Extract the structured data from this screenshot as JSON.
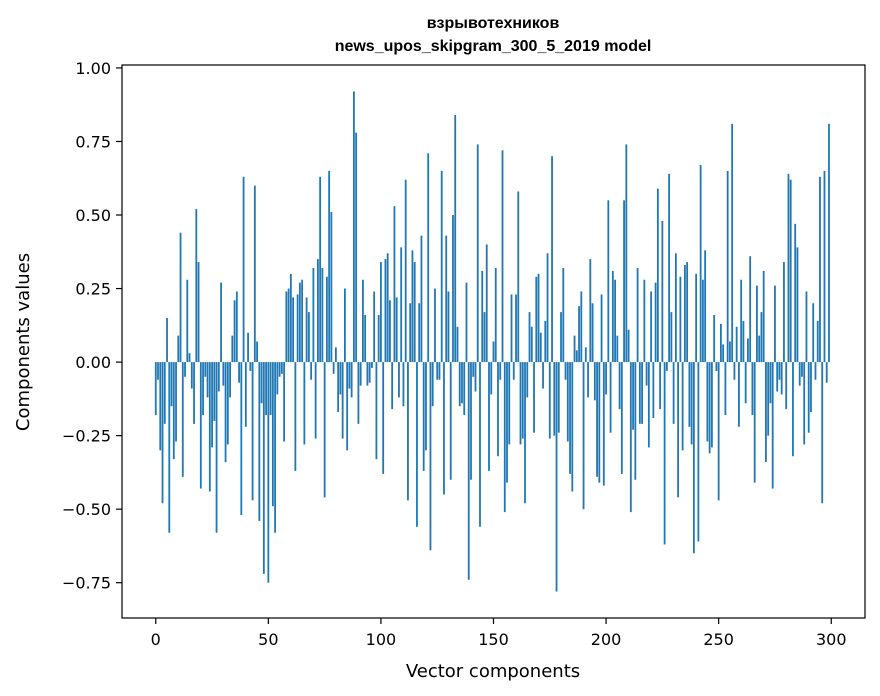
{
  "chart_data": {
    "type": "bar",
    "title_line1": "взрывотехников",
    "title_line2": "news_upos_skipgram_300_5_2019 model",
    "xlabel": "Vector components",
    "ylabel": "Components values",
    "xlim": [
      -15,
      315
    ],
    "ylim": [
      -0.87,
      1.01
    ],
    "xticks": [
      0,
      50,
      100,
      150,
      200,
      250,
      300
    ],
    "xtick_labels": [
      "0",
      "50",
      "100",
      "150",
      "200",
      "250",
      "300"
    ],
    "yticks": [
      -0.75,
      -0.5,
      -0.25,
      0.0,
      0.25,
      0.5,
      0.75,
      1.0
    ],
    "ytick_labels": [
      "−0.75",
      "−0.50",
      "−0.25",
      "0.00",
      "0.25",
      "0.50",
      "0.75",
      "1.00"
    ],
    "bar_color": "#1f77b4",
    "grid": false,
    "legend": "none",
    "values": [
      -0.18,
      -0.06,
      -0.3,
      -0.48,
      -0.21,
      0.15,
      -0.58,
      -0.15,
      -0.33,
      -0.27,
      0.09,
      0.44,
      -0.39,
      -0.05,
      0.28,
      0.03,
      -0.09,
      -0.21,
      0.52,
      0.34,
      -0.43,
      -0.18,
      -0.05,
      -0.12,
      -0.44,
      -0.29,
      -0.2,
      -0.58,
      -0.1,
      0.27,
      -0.08,
      -0.34,
      -0.28,
      -0.12,
      0.09,
      0.21,
      0.24,
      -0.07,
      -0.52,
      0.63,
      -0.22,
      0.1,
      -0.03,
      -0.47,
      0.6,
      0.07,
      -0.54,
      -0.14,
      -0.72,
      -0.18,
      -0.75,
      -0.18,
      -0.49,
      -0.58,
      -0.11,
      -0.05,
      -0.04,
      -0.27,
      0.24,
      0.25,
      0.3,
      0.22,
      -0.37,
      0.23,
      0.27,
      0.28,
      -0.28,
      0.22,
      0.17,
      -0.06,
      0.32,
      -0.26,
      0.35,
      0.63,
      0.32,
      -0.46,
      0.29,
      0.65,
      0.51,
      -0.04,
      0.05,
      -0.17,
      -0.11,
      -0.26,
      0.25,
      -0.3,
      -0.09,
      -0.12,
      0.92,
      0.78,
      -0.21,
      -0.08,
      0.28,
      0.16,
      -0.08,
      -0.07,
      -0.02,
      0.24,
      -0.33,
      0.16,
      0.34,
      -0.38,
      0.35,
      0.37,
      0.21,
      -0.16,
      0.53,
      0.22,
      -0.12,
      0.39,
      -0.15,
      0.62,
      -0.47,
      0.2,
      0.38,
      0.34,
      -0.56,
      0.2,
      0.43,
      -0.37,
      -0.3,
      0.71,
      -0.64,
      -0.15,
      0.25,
      -0.06,
      -0.06,
      0.65,
      -0.45,
      0.43,
      0.24,
      -0.4,
      0.5,
      0.84,
      0.12,
      -0.15,
      -0.14,
      -0.18,
      0.27,
      -0.74,
      -0.4,
      -0.05,
      -0.1,
      0.74,
      -0.56,
      0.31,
      0.17,
      0.4,
      -0.37,
      -0.11,
      0.07,
      0.32,
      -0.32,
      -0.06,
      0.72,
      -0.51,
      -0.41,
      -0.28,
      0.23,
      -0.06,
      0.23,
      0.58,
      -0.28,
      -0.26,
      -0.48,
      -0.12,
      0.17,
      0.12,
      -0.24,
      0.29,
      0.3,
      0.1,
      -0.09,
      0.14,
      0.37,
      -0.26,
      0.7,
      -0.25,
      -0.78,
      -0.24,
      0.17,
      0.32,
      -0.06,
      -0.27,
      -0.38,
      -0.44,
      0.09,
      0.04,
      0.19,
      0.24,
      -0.5,
      0.05,
      -0.12,
      0.35,
      0.2,
      -0.13,
      -0.39,
      -0.41,
      0.23,
      -0.42,
      -0.11,
      0.55,
      -0.24,
      0.31,
      0.28,
      0.09,
      -0.16,
      -0.38,
      0.55,
      0.74,
      0.11,
      -0.51,
      -0.23,
      -0.4,
      0.32,
      -0.21,
      -0.21,
      0.28,
      -0.08,
      -0.29,
      0.24,
      -0.19,
      0.27,
      0.59,
      -0.16,
      0.48,
      -0.62,
      -0.03,
      0.64,
      0.17,
      -0.21,
      0.37,
      -0.46,
      0.29,
      -0.3,
      0.33,
      0.34,
      -0.22,
      -0.28,
      -0.65,
      0.3,
      -0.61,
      0.67,
      0.28,
      0.38,
      -0.27,
      -0.31,
      -0.29,
      0.16,
      -0.03,
      -0.47,
      0.13,
      0.06,
      -0.18,
      0.65,
      0.07,
      0.81,
      -0.06,
      0.12,
      -0.22,
      0.28,
      0.14,
      -0.14,
      0.08,
      0.36,
      -0.18,
      -0.41,
      0.26,
      0.09,
      0.17,
      0.31,
      -0.34,
      -0.25,
      -0.14,
      -0.43,
      0.26,
      -0.1,
      -0.06,
      -0.11,
      0.34,
      -0.16,
      0.64,
      0.62,
      -0.32,
      0.47,
      0.39,
      -0.08,
      -0.05,
      -0.28,
      0.24,
      -0.24,
      -0.17,
      0.2,
      -0.06,
      0.14,
      0.63,
      -0.48,
      0.65,
      -0.07,
      0.81
    ]
  }
}
